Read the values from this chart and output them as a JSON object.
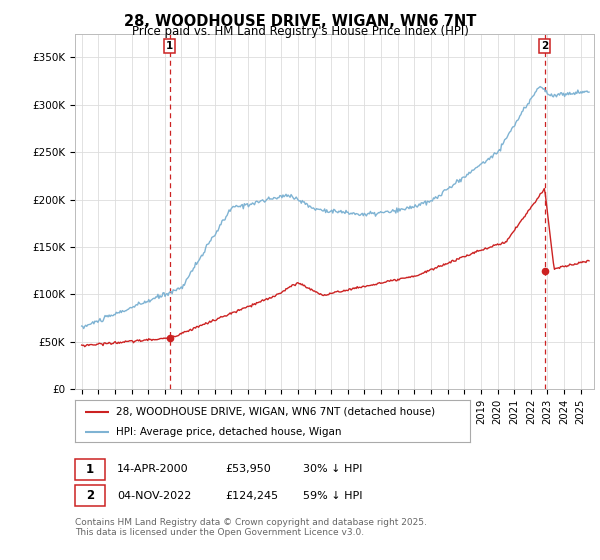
{
  "title": "28, WOODHOUSE DRIVE, WIGAN, WN6 7NT",
  "subtitle": "Price paid vs. HM Land Registry's House Price Index (HPI)",
  "ylabel_ticks": [
    "£0",
    "£50K",
    "£100K",
    "£150K",
    "£200K",
    "£250K",
    "£300K",
    "£350K"
  ],
  "ytick_values": [
    0,
    50000,
    100000,
    150000,
    200000,
    250000,
    300000,
    350000
  ],
  "ylim": [
    0,
    375000
  ],
  "xlim_start": 1994.6,
  "xlim_end": 2025.8,
  "background_color": "#ffffff",
  "plot_bg_color": "#ffffff",
  "grid_color": "#dddddd",
  "hpi_color": "#7fb3d3",
  "price_color": "#cc2222",
  "dashed_color": "#cc2222",
  "marker1_x": 2000.29,
  "marker1_y": 53950,
  "marker2_x": 2022.84,
  "marker2_y": 124245,
  "legend_label_price": "28, WOODHOUSE DRIVE, WIGAN, WN6 7NT (detached house)",
  "legend_label_hpi": "HPI: Average price, detached house, Wigan",
  "note1_date": "14-APR-2000",
  "note1_price": "£53,950",
  "note1_hpi": "30% ↓ HPI",
  "note2_date": "04-NOV-2022",
  "note2_price": "£124,245",
  "note2_hpi": "59% ↓ HPI",
  "copyright": "Contains HM Land Registry data © Crown copyright and database right 2025.\nThis data is licensed under the Open Government Licence v3.0.",
  "title_fontsize": 10.5,
  "subtitle_fontsize": 8.5,
  "tick_fontsize": 7.5,
  "legend_fontsize": 7.5,
  "note_fontsize": 8,
  "copyright_fontsize": 6.5
}
